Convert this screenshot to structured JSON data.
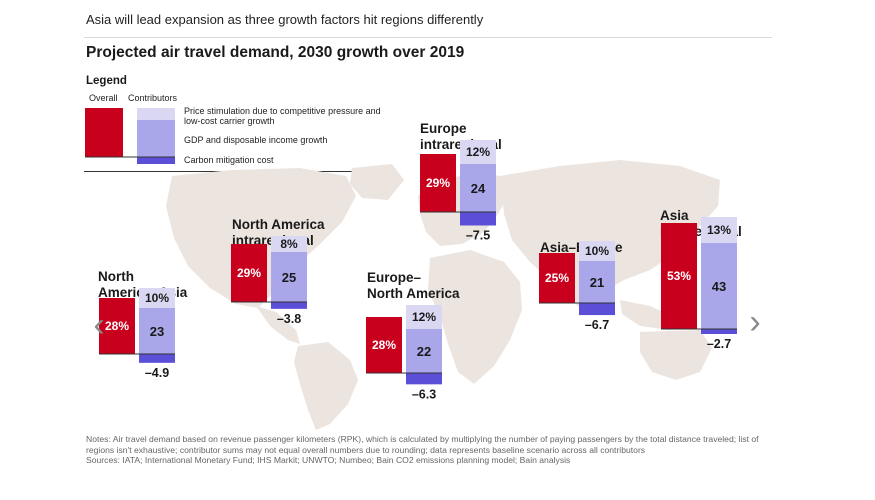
{
  "headline": "Asia will lead expansion as three growth factors hit regions differently",
  "title": "Projected air travel demand, 2030 growth over 2019",
  "legend": {
    "title": "Legend",
    "overall_label": "Overall",
    "contributors_label": "Contributors",
    "items": [
      "Price stimulation due to competitive pressure and low-cost carrier growth",
      "GDP and disposable income growth",
      "Carbon mitigation cost"
    ]
  },
  "colors": {
    "overall": "#c8001e",
    "price": "#d9d7f2",
    "gdp": "#a9a6ea",
    "carbon": "#5b4fd8",
    "map": "#ece4df"
  },
  "chart_data": {
    "type": "bar",
    "title": "Projected air travel demand, 2030 growth over 2019",
    "units": "percent growth / percentage points",
    "series_names": [
      "Overall",
      "Price stimulation",
      "GDP and disposable income growth",
      "Carbon mitigation cost"
    ],
    "regions": [
      {
        "name_lines": [
          "North",
          "America–Asia"
        ],
        "overall": 28,
        "overall_label": "28%",
        "price": 10,
        "price_label": "10%",
        "gdp": 23,
        "gdp_label": "23",
        "carbon": -4.9,
        "carbon_label": "–4.9"
      },
      {
        "name_lines": [
          "North America",
          "intraregional"
        ],
        "overall": 29,
        "overall_label": "29%",
        "price": 8,
        "price_label": "8%",
        "gdp": 25,
        "gdp_label": "25",
        "carbon": -3.8,
        "carbon_label": "–3.8"
      },
      {
        "name_lines": [
          "Europe–",
          "North America"
        ],
        "overall": 28,
        "overall_label": "28%",
        "price": 12,
        "price_label": "12%",
        "gdp": 22,
        "gdp_label": "22",
        "carbon": -6.3,
        "carbon_label": "–6.3"
      },
      {
        "name_lines": [
          "Europe",
          "intraregional"
        ],
        "overall": 29,
        "overall_label": "29%",
        "price": 12,
        "price_label": "12%",
        "gdp": 24,
        "gdp_label": "24",
        "carbon": -7.5,
        "carbon_label": "–7.5"
      },
      {
        "name_lines": [
          "Asia–Europe"
        ],
        "overall": 25,
        "overall_label": "25%",
        "price": 10,
        "price_label": "10%",
        "gdp": 21,
        "gdp_label": "21",
        "carbon": -6.7,
        "carbon_label": "–6.7"
      },
      {
        "name_lines": [
          "Asia",
          "intraregional"
        ],
        "overall": 53,
        "overall_label": "53%",
        "price": 13,
        "price_label": "13%",
        "gdp": 43,
        "gdp_label": "43",
        "carbon": -2.7,
        "carbon_label": "–2.7"
      }
    ]
  },
  "notes": {
    "line1": "Notes: Air travel demand based on revenue passenger kilometers (RPK), which is calculated by multiplying the number of paying passengers by the total distance traveled; list of regions isn't exhaustive; contributor sums may not equal overall numbers due to rounding; data represents baseline scenario across all contributors",
    "sources": "Sources: IATA; International Monetary Fund; IHS Markit; UNWTO; Numbeo; Bain CO2 emissions planning model; Bain analysis"
  },
  "nav": {
    "prev": "‹",
    "next": "›"
  }
}
